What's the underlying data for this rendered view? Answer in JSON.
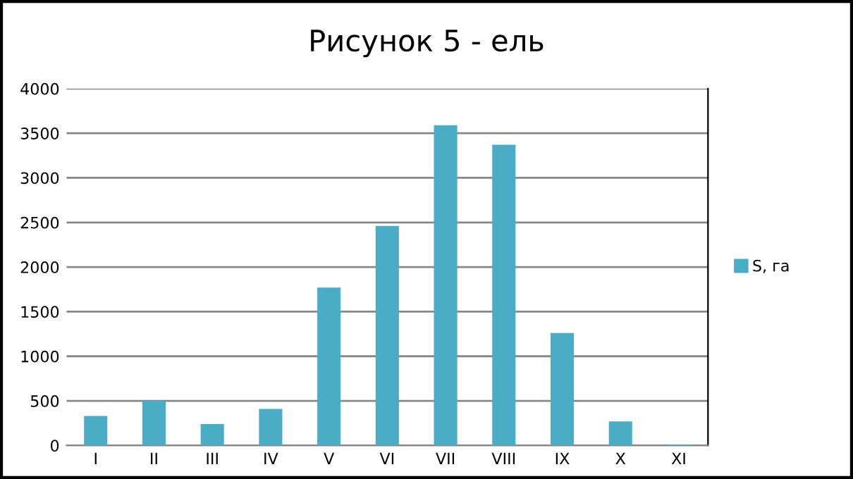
{
  "chart_data": {
    "type": "bar",
    "title": "Рисунок 5 - ель",
    "categories": [
      "I",
      "II",
      "III",
      "IV",
      "V",
      "VI",
      "VII",
      "VIII",
      "IX",
      "X",
      "XI"
    ],
    "series": [
      {
        "name": "S, га",
        "color": "#4bacc6",
        "values": [
          330,
          500,
          240,
          410,
          1770,
          2460,
          3590,
          3370,
          1260,
          270,
          10
        ]
      }
    ],
    "ylim": [
      0,
      4000
    ],
    "yticks": [
      0,
      500,
      1000,
      1500,
      2000,
      2500,
      3000,
      3500,
      4000
    ],
    "grid": "y",
    "legend": "right"
  }
}
